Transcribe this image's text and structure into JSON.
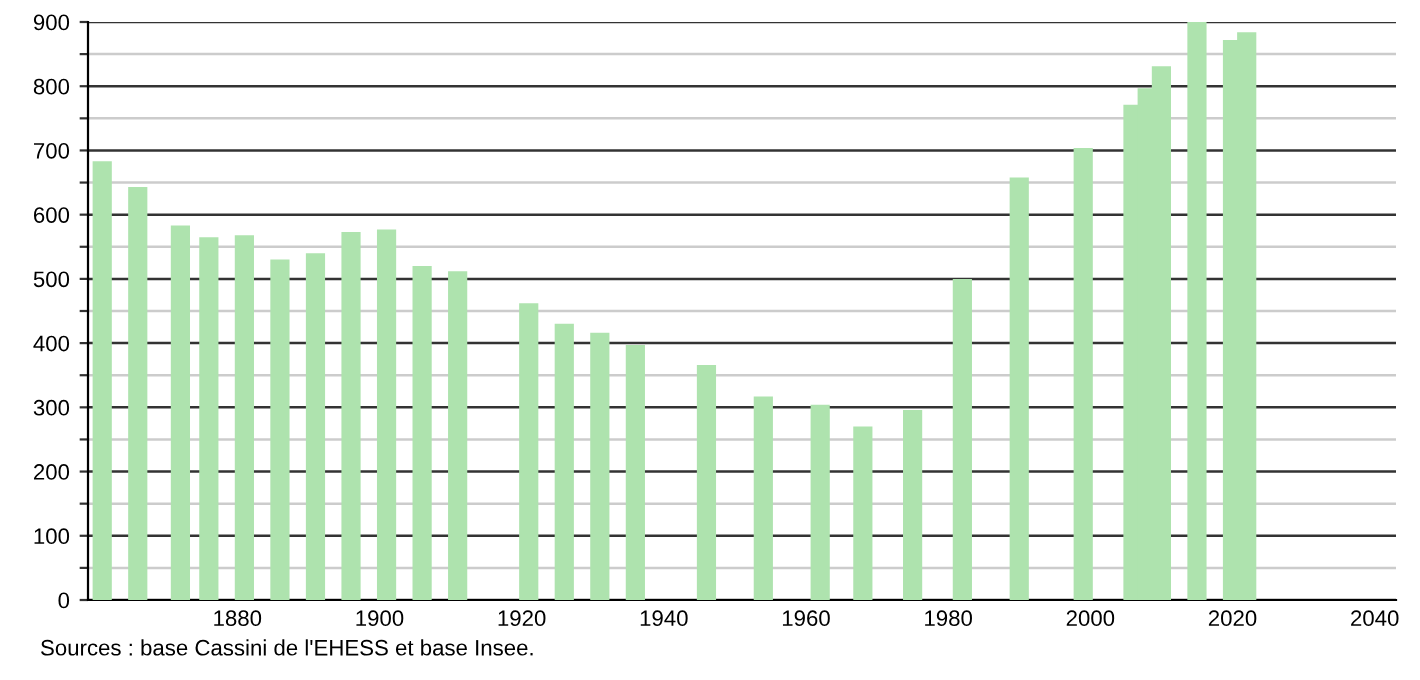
{
  "chart_data": {
    "type": "bar",
    "x": [
      1861,
      1866,
      1872,
      1876,
      1881,
      1886,
      1891,
      1896,
      1901,
      1906,
      1911,
      1921,
      1926,
      1931,
      1936,
      1946,
      1954,
      1962,
      1968,
      1975,
      1982,
      1990,
      1999,
      2006,
      2008,
      2010,
      2015,
      2020,
      2022
    ],
    "values": [
      683,
      643,
      583,
      565,
      568,
      530,
      540,
      573,
      577,
      520,
      512,
      462,
      430,
      416,
      397,
      366,
      317,
      304,
      270,
      296,
      500,
      658,
      704,
      771,
      797,
      831,
      900,
      872,
      884
    ],
    "color": "#aee3ae",
    "xlim": [
      1859,
      2043
    ],
    "xticks": [
      1880,
      1900,
      1920,
      1940,
      1960,
      1980,
      2000,
      2020,
      2040
    ],
    "ylim": [
      0,
      900
    ],
    "yticks": [
      0,
      {
        "value": 50,
        "label": null
      },
      100,
      {
        "value": 150,
        "label": null
      },
      200,
      {
        "value": 250,
        "label": null
      },
      300,
      {
        "value": 350,
        "label": null
      },
      400,
      {
        "value": 450,
        "label": null
      },
      500,
      {
        "value": 550,
        "label": null
      },
      600,
      {
        "value": 650,
        "label": null
      },
      700,
      {
        "value": 750,
        "label": null
      },
      800,
      {
        "value": 850,
        "label": null
      },
      900
    ],
    "grid": "y",
    "annotations": [
      "Sources : base Cassini de l'EHESS et base Insee."
    ]
  }
}
